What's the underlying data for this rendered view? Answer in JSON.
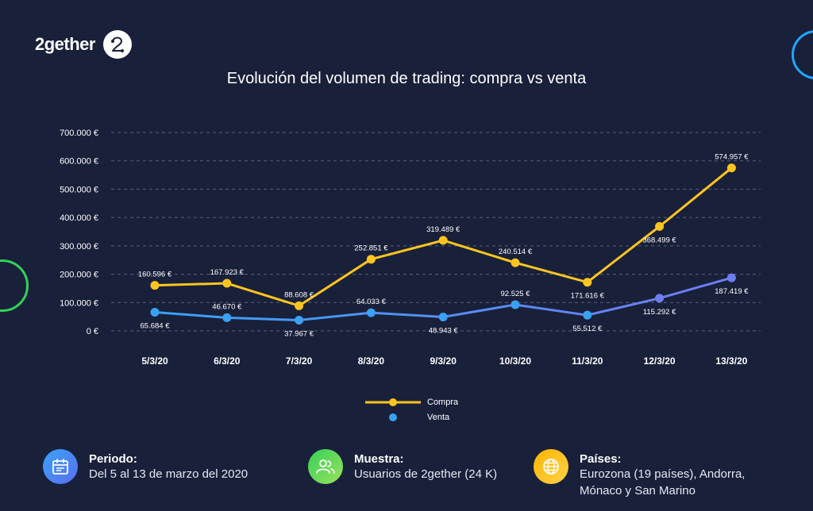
{
  "brand": {
    "name": "2gether",
    "logo_icon": "2gether-logo-icon"
  },
  "chart_data": {
    "type": "line",
    "title": "Evolución del volumen de trading: compra vs venta",
    "categories": [
      "5/3/20",
      "6/3/20",
      "7/3/20",
      "8/3/20",
      "9/3/20",
      "10/3/20",
      "11/3/20",
      "12/3/20",
      "13/3/20"
    ],
    "ylim": [
      0,
      700000
    ],
    "yticks": [
      0,
      100000,
      200000,
      300000,
      400000,
      500000,
      600000,
      700000
    ],
    "ytick_labels": [
      "0 €",
      "100.000 €",
      "200.000 €",
      "300.000 €",
      "400.000 €",
      "500.000 €",
      "600.000 €",
      "700.000 €"
    ],
    "grid": true,
    "legend_position": "bottom-center",
    "series": [
      {
        "name": "Compra",
        "color": "#ffc51f",
        "values": [
          160596,
          167923,
          88608,
          252851,
          319489,
          240514,
          171616,
          368499,
          574957
        ],
        "labels": [
          "160.596 €",
          "167.923 €",
          "88.608 €",
          "252.851 €",
          "319.489 €",
          "240.514 €",
          "171.616 €",
          "368.499 €",
          "574.957 €"
        ]
      },
      {
        "name": "Venta",
        "color": "#3aa1f5",
        "color_end": "#6f7cf0",
        "values": [
          65684,
          46670,
          37967,
          64033,
          48943,
          92525,
          55512,
          115292,
          187419
        ],
        "labels": [
          "65.684 €",
          "46.670 €",
          "37.967 €",
          "64.033 €",
          "48.943 €",
          "92.525 €",
          "55.512 €",
          "115.292 €",
          "187.419 €"
        ]
      }
    ]
  },
  "info": [
    {
      "title": "Periodo:",
      "lines": [
        "Del 5 al 13 de marzo del 2020"
      ],
      "icon": "calendar-icon",
      "color_from": "#3aa1f5",
      "color_to": "#5b6ff2"
    },
    {
      "title": "Muestra:",
      "lines": [
        "Usuarios de 2gether (24 K)"
      ],
      "icon": "users-icon",
      "color_from": "#34d158",
      "color_to": "#9be15d"
    },
    {
      "title": "Países:",
      "lines": [
        "Eurozona (19 países), Andorra,",
        "Mónaco y San Marino"
      ],
      "icon": "globe-icon",
      "color_from": "#ffb400",
      "color_to": "#ffd24a"
    }
  ]
}
